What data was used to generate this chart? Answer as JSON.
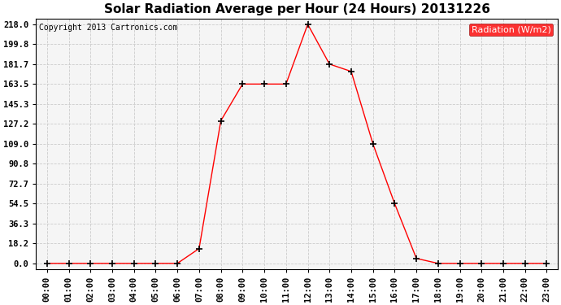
{
  "title": "Solar Radiation Average per Hour (24 Hours) 20131226",
  "copyright": "Copyright 2013 Cartronics.com",
  "legend_label": "Radiation (W/m2)",
  "hours": [
    0,
    1,
    2,
    3,
    4,
    5,
    6,
    7,
    8,
    9,
    10,
    11,
    12,
    13,
    14,
    15,
    16,
    17,
    18,
    19,
    20,
    21,
    22,
    23
  ],
  "values": [
    0.0,
    0.0,
    0.0,
    0.0,
    0.0,
    0.0,
    0.0,
    13.5,
    130.0,
    163.5,
    163.5,
    163.5,
    218.0,
    181.7,
    175.0,
    109.0,
    54.5,
    4.5,
    0.0,
    0.0,
    0.0,
    0.0,
    0.0,
    0.0
  ],
  "yticks": [
    0.0,
    18.2,
    36.3,
    54.5,
    72.7,
    90.8,
    109.0,
    127.2,
    145.3,
    163.5,
    181.7,
    199.8,
    218.0
  ],
  "line_color": "#ff0000",
  "marker": "+",
  "bg_color": "#ffffff",
  "plot_bg_color": "#f5f5f5",
  "grid_color": "#cccccc",
  "ylim_min": -5.0,
  "ylim_max": 223.0,
  "xlim_min": -0.5,
  "xlim_max": 23.5,
  "title_fontsize": 11,
  "tick_fontsize": 7.5,
  "copyright_fontsize": 7,
  "legend_fontsize": 8
}
